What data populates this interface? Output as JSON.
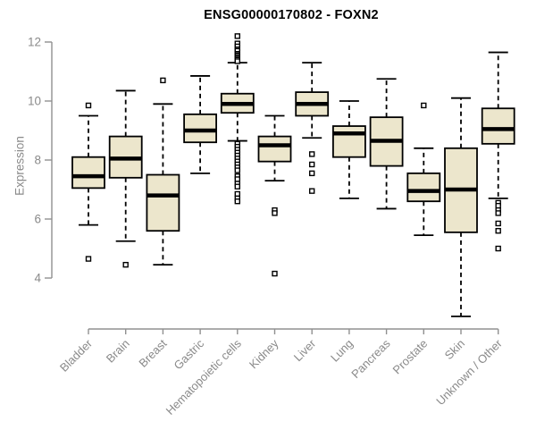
{
  "chart_data": {
    "type": "boxplot",
    "title": "ENSG00000170802 - FOXN2",
    "xlabel": "",
    "ylabel": "Expression",
    "ylim": [
      2.5,
      12.4
    ],
    "yticks": [
      4,
      6,
      8,
      10,
      12
    ],
    "grid": false,
    "legend": "none",
    "categories": [
      "Bladder",
      "Brain",
      "Breast",
      "Gastric",
      "Hematopoietic cells",
      "Kidney",
      "Liver",
      "Lung",
      "Pancreas",
      "Prostate",
      "Skin",
      "Unknown / Other"
    ],
    "series": [
      {
        "category": "Bladder",
        "whisker_low": 5.8,
        "q1": 7.05,
        "median": 7.45,
        "q3": 8.1,
        "whisker_high": 9.5,
        "outliers": [
          9.85,
          4.65
        ]
      },
      {
        "category": "Brain",
        "whisker_low": 5.25,
        "q1": 7.4,
        "median": 8.05,
        "q3": 8.8,
        "whisker_high": 10.35,
        "outliers": [
          4.45
        ]
      },
      {
        "category": "Breast",
        "whisker_low": 4.45,
        "q1": 5.6,
        "median": 6.8,
        "q3": 7.5,
        "whisker_high": 9.9,
        "outliers": [
          10.7
        ]
      },
      {
        "category": "Gastric",
        "whisker_low": 7.55,
        "q1": 8.6,
        "median": 9.0,
        "q3": 9.55,
        "whisker_high": 10.85,
        "outliers": []
      },
      {
        "category": "Hematopoietic cells",
        "whisker_low": 8.65,
        "q1": 9.6,
        "median": 9.9,
        "q3": 10.25,
        "whisker_high": 11.3,
        "outliers": [
          12.2,
          11.95,
          11.85,
          11.75,
          11.7,
          11.6,
          11.55,
          11.5,
          11.45,
          11.4,
          11.35,
          8.55,
          8.45,
          8.35,
          8.25,
          8.15,
          8.05,
          7.95,
          7.85,
          7.75,
          7.65,
          7.45,
          7.35,
          7.2,
          7.1,
          6.85,
          6.7,
          6.6
        ]
      },
      {
        "category": "Kidney",
        "whisker_low": 7.3,
        "q1": 7.95,
        "median": 8.5,
        "q3": 8.8,
        "whisker_high": 9.5,
        "outliers": [
          6.3,
          6.2,
          4.15
        ]
      },
      {
        "category": "Liver",
        "whisker_low": 8.75,
        "q1": 9.5,
        "median": 9.9,
        "q3": 10.3,
        "whisker_high": 11.3,
        "outliers": [
          8.2,
          7.85,
          7.55,
          6.95
        ]
      },
      {
        "category": "Lung",
        "whisker_low": 6.7,
        "q1": 8.1,
        "median": 8.9,
        "q3": 9.15,
        "whisker_high": 10.0,
        "outliers": []
      },
      {
        "category": "Pancreas",
        "whisker_low": 6.35,
        "q1": 7.8,
        "median": 8.65,
        "q3": 9.45,
        "whisker_high": 10.75,
        "outliers": []
      },
      {
        "category": "Prostate",
        "whisker_low": 5.45,
        "q1": 6.6,
        "median": 6.95,
        "q3": 7.55,
        "whisker_high": 8.4,
        "outliers": [
          9.85
        ]
      },
      {
        "category": "Skin",
        "whisker_low": 2.7,
        "q1": 5.55,
        "median": 7.0,
        "q3": 8.4,
        "whisker_high": 10.1,
        "outliers": []
      },
      {
        "category": "Unknown / Other",
        "whisker_low": 6.7,
        "q1": 8.55,
        "median": 9.05,
        "q3": 9.75,
        "whisker_high": 11.65,
        "outliers": [
          6.55,
          6.45,
          6.3,
          6.2,
          5.85,
          5.6,
          5.0
        ]
      }
    ],
    "colors": {
      "box_fill": "#ECE6CC",
      "box_border": "#000000",
      "median": "#000000",
      "axis": "#909090",
      "tick_text": "#8a8a8a",
      "title_text": "#000000",
      "outlier_fill": "#ffffff",
      "background": "#ffffff"
    }
  }
}
